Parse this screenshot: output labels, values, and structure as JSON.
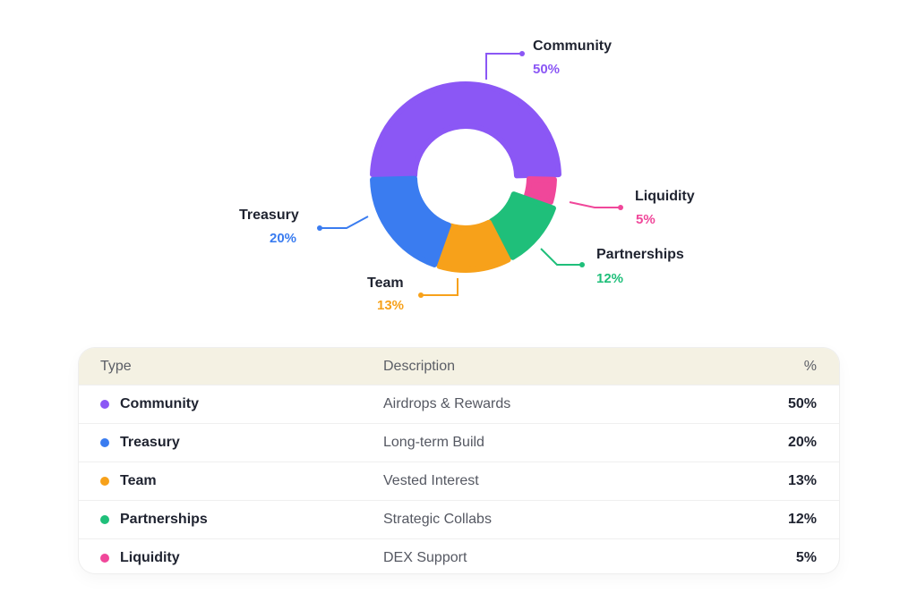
{
  "chart_data": {
    "type": "pie",
    "variant": "donut",
    "slices": [
      {
        "name": "Community",
        "value": 50,
        "label": "50%",
        "color": "#8b57f5"
      },
      {
        "name": "Liquidity",
        "value": 5,
        "label": "5%",
        "color": "#f0479a"
      },
      {
        "name": "Partnerships",
        "value": 12,
        "label": "12%",
        "color": "#1fbf7a"
      },
      {
        "name": "Team",
        "value": 13,
        "label": "13%",
        "color": "#f7a11a"
      },
      {
        "name": "Treasury",
        "value": 20,
        "label": "20%",
        "color": "#3a7cf0"
      }
    ]
  },
  "table": {
    "headers": {
      "type": "Type",
      "description": "Description",
      "percent": "%"
    },
    "rows": [
      {
        "type": "Community",
        "description": "Airdrops & Rewards",
        "percent": "50%",
        "color": "#8b57f5"
      },
      {
        "type": "Treasury",
        "description": "Long-term Build",
        "percent": "20%",
        "color": "#3a7cf0"
      },
      {
        "type": "Team",
        "description": "Vested Interest",
        "percent": "13%",
        "color": "#f7a11a"
      },
      {
        "type": "Partnerships",
        "description": "Strategic Collabs",
        "percent": "12%",
        "color": "#1fbf7a"
      },
      {
        "type": "Liquidity",
        "description": "DEX Support",
        "percent": "5%",
        "color": "#f0479a"
      }
    ]
  }
}
